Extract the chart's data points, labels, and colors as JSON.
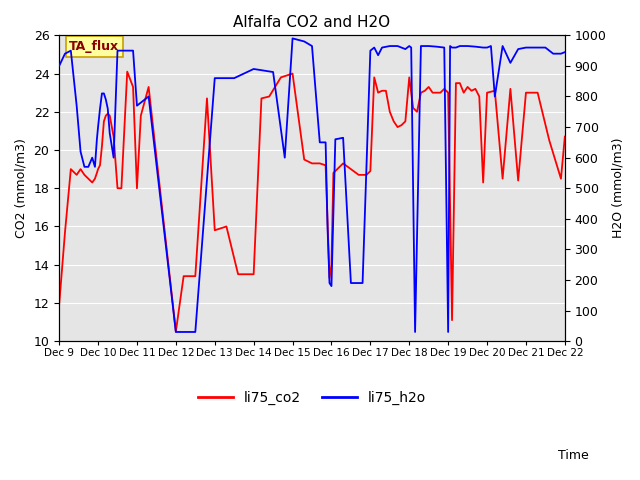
{
  "title": "Alfalfa CO2 and H2O",
  "xlabel": "Time",
  "ylabel_left": "CO2 (mmol/m3)",
  "ylabel_right": "H2O (mmol/m3)",
  "ylim_left": [
    10,
    26
  ],
  "ylim_right": [
    0,
    1000
  ],
  "yticks_left": [
    10,
    12,
    14,
    16,
    18,
    20,
    22,
    24,
    26
  ],
  "yticks_right": [
    0,
    100,
    200,
    300,
    400,
    500,
    600,
    700,
    800,
    900,
    1000
  ],
  "background_color": "#e5e5e5",
  "annotation_text": "TA_flux",
  "annotation_bg": "#ffffa0",
  "annotation_border": "#c8a000",
  "legend_labels": [
    "li75_co2",
    "li75_h2o"
  ],
  "legend_colors": [
    "red",
    "blue"
  ],
  "co2_color": "red",
  "h2o_color": "blue",
  "line_width": 1.3,
  "x_tick_labels": [
    "Dec 9",
    "Dec 10",
    "Dec 11",
    "Dec 12",
    "Dec 13",
    "Dec 14",
    "Dec 15",
    "Dec 16",
    "Dec 17",
    "Dec 18",
    "Dec 19",
    "Dec 20",
    "Dec 21",
    "Dec 22"
  ],
  "x_values_co2": [
    0.0,
    0.15,
    0.3,
    0.45,
    0.55,
    0.65,
    0.75,
    0.85,
    0.92,
    0.97,
    1.0,
    1.05,
    1.1,
    1.15,
    1.2,
    1.25,
    1.3,
    1.4,
    1.5,
    1.6,
    1.75,
    1.9,
    2.0,
    2.1,
    2.3,
    3.0,
    3.2,
    3.5,
    3.8,
    4.0,
    4.3,
    4.6,
    5.0,
    5.2,
    5.4,
    5.7,
    6.0,
    6.3,
    6.5,
    6.7,
    6.85,
    6.95,
    7.0,
    7.05,
    7.15,
    7.3,
    7.5,
    7.7,
    7.9,
    8.0,
    8.1,
    8.2,
    8.3,
    8.4,
    8.5,
    8.6,
    8.7,
    8.8,
    8.9,
    9.0,
    9.1,
    9.2,
    9.3,
    9.4,
    9.5,
    9.6,
    9.7,
    9.8,
    9.9,
    10.0,
    10.1,
    10.2,
    10.3,
    10.4,
    10.5,
    10.6,
    10.7,
    10.8,
    10.9,
    11.0,
    11.2,
    11.4,
    11.6,
    11.8,
    12.0,
    12.3,
    12.6,
    12.9,
    13.0
  ],
  "y_values_co2": [
    11.9,
    15.7,
    19.0,
    18.7,
    19.0,
    18.7,
    18.5,
    18.3,
    18.5,
    18.8,
    19.0,
    19.2,
    20.2,
    21.5,
    21.8,
    21.9,
    21.8,
    20.7,
    18.0,
    18.0,
    24.1,
    23.3,
    18.0,
    21.8,
    23.3,
    10.5,
    13.4,
    13.4,
    22.7,
    15.8,
    16.0,
    13.5,
    13.5,
    22.7,
    22.8,
    23.8,
    24.0,
    19.5,
    19.3,
    19.3,
    19.2,
    13.3,
    14.0,
    18.8,
    19.0,
    19.3,
    19.0,
    18.7,
    18.7,
    18.9,
    23.8,
    23.0,
    23.1,
    23.1,
    22.0,
    21.5,
    21.2,
    21.3,
    21.5,
    23.8,
    22.2,
    22.0,
    23.0,
    23.1,
    23.3,
    23.0,
    23.0,
    23.0,
    23.2,
    23.0,
    11.1,
    23.5,
    23.5,
    23.0,
    23.3,
    23.1,
    23.2,
    22.8,
    18.3,
    23.0,
    23.1,
    18.5,
    23.2,
    18.4,
    23.0,
    23.0,
    20.5,
    18.5,
    20.7
  ],
  "x_values_h2o": [
    0.0,
    0.15,
    0.3,
    0.45,
    0.55,
    0.65,
    0.75,
    0.85,
    0.92,
    0.97,
    1.0,
    1.05,
    1.1,
    1.15,
    1.2,
    1.25,
    1.3,
    1.4,
    1.5,
    1.7,
    1.9,
    2.0,
    2.3,
    3.0,
    3.5,
    4.0,
    4.5,
    5.0,
    5.5,
    5.8,
    6.0,
    6.3,
    6.5,
    6.7,
    6.85,
    6.9,
    6.95,
    7.0,
    7.1,
    7.3,
    7.5,
    7.8,
    8.0,
    8.1,
    8.2,
    8.3,
    8.5,
    8.7,
    8.9,
    9.0,
    9.05,
    9.15,
    9.3,
    9.5,
    9.7,
    9.9,
    10.0,
    10.05,
    10.1,
    10.2,
    10.3,
    10.5,
    10.7,
    10.9,
    11.0,
    11.1,
    11.2,
    11.4,
    11.6,
    11.8,
    12.0,
    12.3,
    12.5,
    12.7,
    12.9,
    13.0
  ],
  "y_values_h2o": [
    900,
    940,
    950,
    770,
    620,
    570,
    570,
    600,
    570,
    660,
    700,
    760,
    810,
    810,
    790,
    760,
    680,
    600,
    950,
    950,
    950,
    770,
    800,
    30,
    30,
    860,
    860,
    890,
    880,
    600,
    990,
    980,
    965,
    650,
    650,
    370,
    190,
    180,
    660,
    665,
    190,
    190,
    950,
    960,
    935,
    960,
    965,
    965,
    955,
    965,
    960,
    30,
    965,
    965,
    963,
    960,
    30,
    965,
    960,
    960,
    965,
    965,
    963,
    960,
    960,
    965,
    800,
    965,
    910,
    955,
    960,
    960,
    960,
    940,
    940,
    945
  ]
}
